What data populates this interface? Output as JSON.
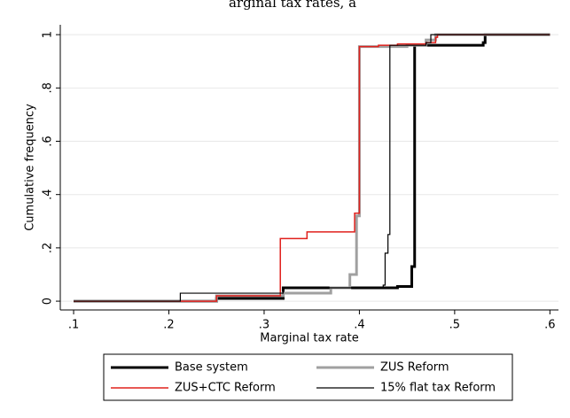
{
  "chart_data": {
    "type": "step",
    "title": "arginal tax rates, a",
    "x_label": "Marginal tax rate",
    "y_label": "Cumulative frequency",
    "xlim": [
      0.086,
      0.609
    ],
    "ylim": [
      -0.033,
      1.037
    ],
    "xticks": [
      {
        "value": 0.1,
        "label": ".1"
      },
      {
        "value": 0.2,
        "label": ".2"
      },
      {
        "value": 0.3,
        "label": ".3"
      },
      {
        "value": 0.4,
        "label": ".4"
      },
      {
        "value": 0.5,
        "label": ".5"
      },
      {
        "value": 0.6,
        "label": ".6"
      }
    ],
    "yticks": [
      0,
      {
        "value": 0.2,
        "label": ".2"
      },
      {
        "value": 0.4,
        "label": ".4"
      },
      {
        "value": 0.6,
        "label": ".6"
      },
      {
        "value": 0.8,
        "label": ".8"
      },
      1
    ],
    "grid": true,
    "series": [
      {
        "name": "Base system",
        "color": "#000000",
        "width": 3,
        "x": [
          0.1,
          0.25,
          0.32,
          0.44,
          0.455,
          0.458,
          0.53,
          0.532,
          0.6
        ],
        "values": [
          0,
          0.01,
          0.05,
          0.055,
          0.13,
          0.96,
          0.97,
          1,
          1
        ]
      },
      {
        "name": "ZUS Reform",
        "color": "#a0a0a0",
        "width": 3,
        "x": [
          0.1,
          0.25,
          0.32,
          0.37,
          0.39,
          0.397,
          0.4,
          0.45,
          0.47,
          0.48,
          0.6
        ],
        "values": [
          0,
          0.02,
          0.03,
          0.05,
          0.1,
          0.32,
          0.955,
          0.96,
          0.98,
          1,
          1
        ]
      },
      {
        "name": "ZUS+CTC Reform",
        "color": "#e0201c",
        "width": 1.5,
        "x": [
          0.1,
          0.25,
          0.317,
          0.345,
          0.395,
          0.4,
          0.42,
          0.44,
          0.47,
          0.48,
          0.482,
          0.6
        ],
        "values": [
          0,
          0.02,
          0.235,
          0.26,
          0.33,
          0.955,
          0.96,
          0.965,
          0.97,
          0.99,
          1,
          1
        ]
      },
      {
        "name": "15% flat tax Reform",
        "color": "#000000",
        "width": 1.2,
        "x": [
          0.1,
          0.212,
          0.32,
          0.425,
          0.427,
          0.43,
          0.432,
          0.47,
          0.475,
          0.6
        ],
        "values": [
          0,
          0.03,
          0.05,
          0.06,
          0.18,
          0.25,
          0.96,
          0.97,
          1,
          1
        ]
      }
    ]
  }
}
